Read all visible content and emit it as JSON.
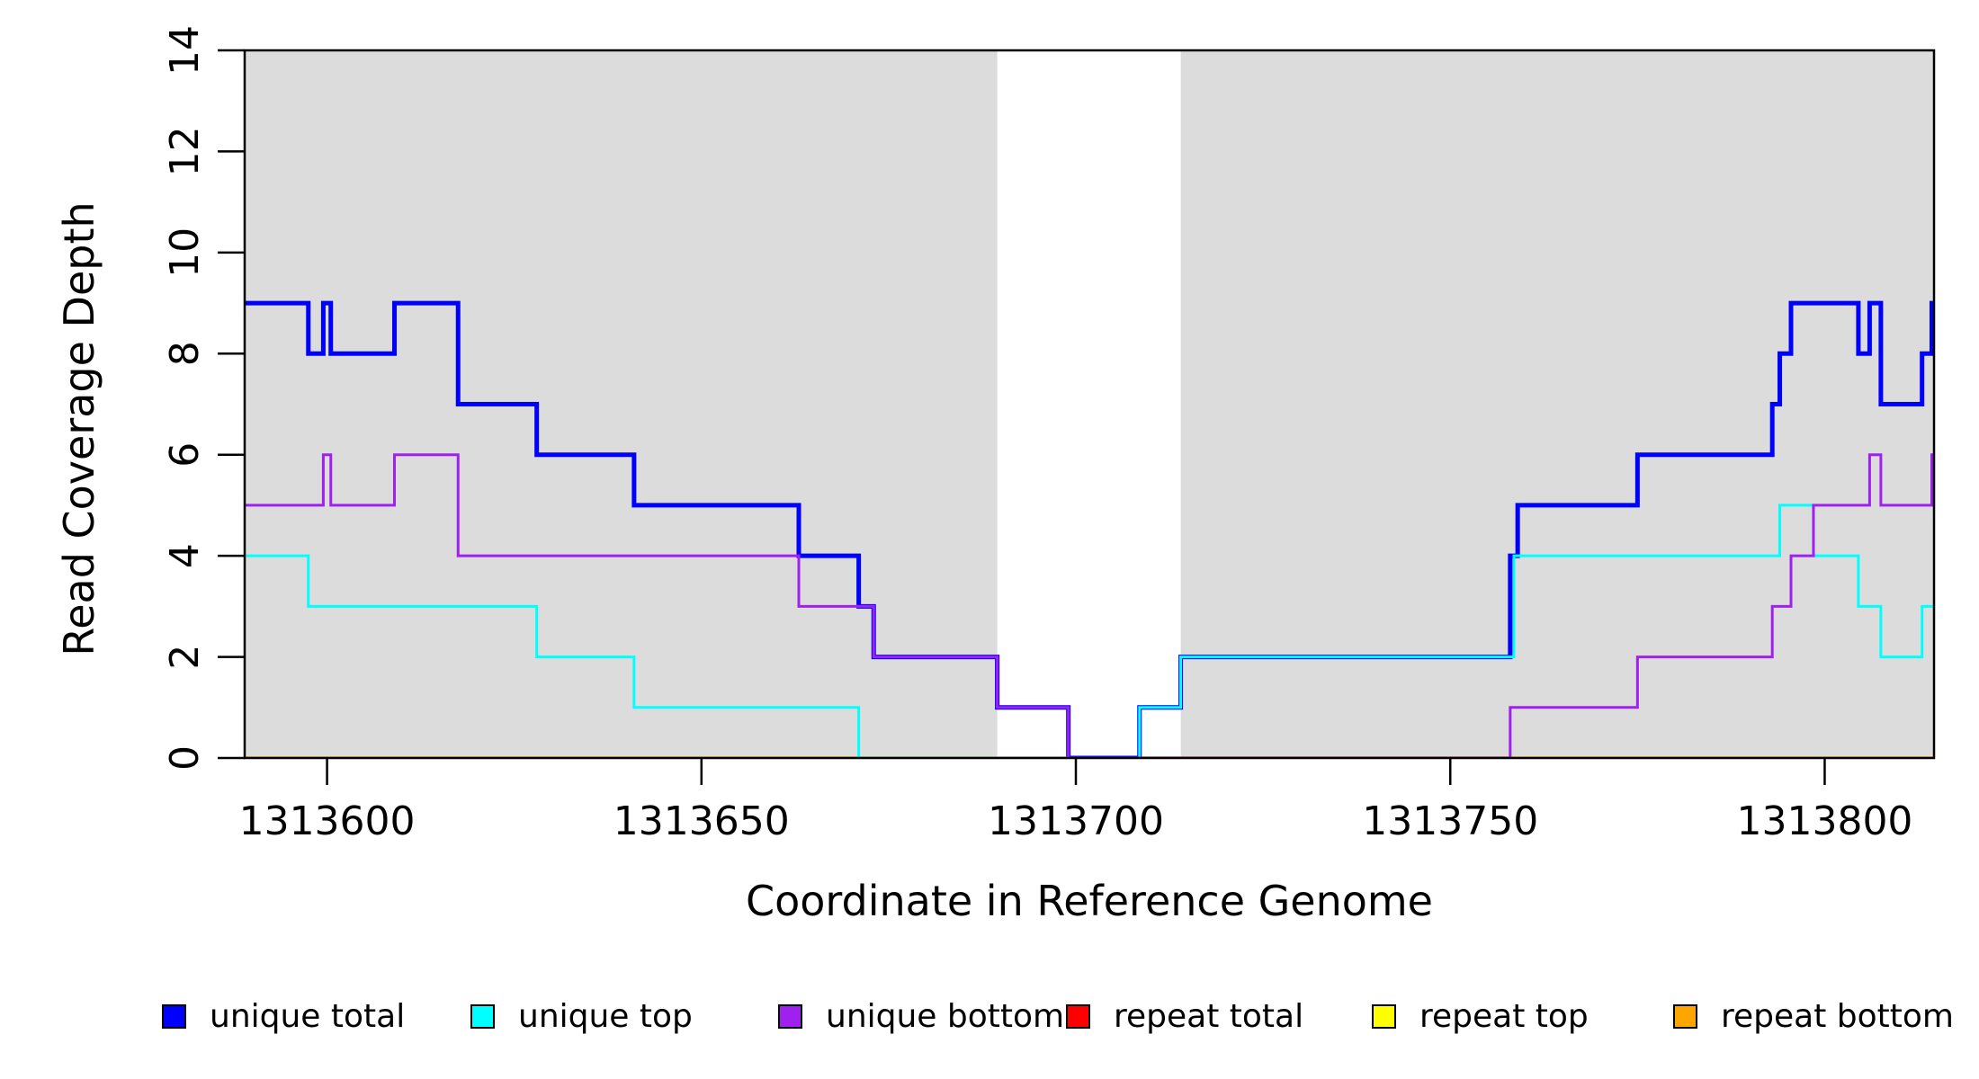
{
  "chart_data": {
    "type": "line",
    "subtype": "step",
    "title": "",
    "xlabel": "Coordinate in Reference Genome",
    "ylabel": "Read Coverage Depth",
    "xlim": [
      1313589,
      1313814.6
    ],
    "ylim": [
      0,
      14
    ],
    "x_ticks": [
      1313600,
      1313650,
      1313700,
      1313750,
      1313800
    ],
    "y_ticks": [
      0,
      2,
      4,
      6,
      8,
      10,
      12,
      14
    ],
    "grid": false,
    "legend_position": "bottom",
    "shaded_regions": {
      "color": "#DCDCDC",
      "x_ranges": [
        [
          1313589,
          1313689.5
        ],
        [
          1313714,
          1313814.6
        ]
      ]
    },
    "legend_order": [
      "unique total",
      "unique top",
      "unique bottom",
      "repeat total",
      "repeat top",
      "repeat bottom"
    ],
    "series": [
      {
        "name": "repeat total",
        "color": "#FF0000",
        "line_width": 3,
        "step_points": [
          [
            1313589,
            0
          ]
        ]
      },
      {
        "name": "repeat top",
        "color": "#FFFF00",
        "line_width": 3,
        "step_points": [
          [
            1313589,
            0
          ]
        ]
      },
      {
        "name": "repeat bottom",
        "color": "#FFA500",
        "line_width": 3.5,
        "step_points": [
          [
            1313589,
            0
          ]
        ]
      },
      {
        "name": "unique total",
        "color": "#0000FF",
        "line_width": 5,
        "step_points": [
          [
            1313589,
            9
          ],
          [
            1313597.5,
            8
          ],
          [
            1313599.5,
            9
          ],
          [
            1313600.5,
            8
          ],
          [
            1313609,
            9
          ],
          [
            1313617.5,
            7
          ],
          [
            1313628,
            6
          ],
          [
            1313641,
            5
          ],
          [
            1313663,
            4
          ],
          [
            1313671,
            3
          ],
          [
            1313673,
            2
          ],
          [
            1313689.5,
            1
          ],
          [
            1313699,
            0
          ],
          [
            1313708.5,
            1
          ],
          [
            1313714,
            2
          ],
          [
            1313758,
            4
          ],
          [
            1313759,
            5
          ],
          [
            1313775,
            6
          ],
          [
            1313793,
            7
          ],
          [
            1313794,
            8
          ],
          [
            1313795.5,
            9
          ],
          [
            1313804.5,
            8
          ],
          [
            1313806,
            9
          ],
          [
            1313807.5,
            7
          ],
          [
            1313813,
            8
          ],
          [
            1313814.3,
            9
          ]
        ]
      },
      {
        "name": "unique top",
        "color": "#00FFFF",
        "line_width": 3,
        "step_points": [
          [
            1313589,
            4
          ],
          [
            1313597.5,
            3
          ],
          [
            1313628,
            2
          ],
          [
            1313641,
            1
          ],
          [
            1313671,
            0
          ],
          [
            1313708.5,
            1
          ],
          [
            1313714,
            2
          ],
          [
            1313758.5,
            4
          ],
          [
            1313794,
            5
          ],
          [
            1313798.5,
            4
          ],
          [
            1313804.5,
            3
          ],
          [
            1313807.5,
            2
          ],
          [
            1313813,
            3
          ]
        ]
      },
      {
        "name": "unique bottom",
        "color": "#A020F0",
        "line_width": 3,
        "step_points": [
          [
            1313589,
            5
          ],
          [
            1313599.5,
            6
          ],
          [
            1313600.5,
            5
          ],
          [
            1313609,
            6
          ],
          [
            1313617.5,
            4
          ],
          [
            1313663,
            3
          ],
          [
            1313673,
            2
          ],
          [
            1313689.5,
            1
          ],
          [
            1313699,
            0
          ],
          [
            1313758,
            1
          ],
          [
            1313775,
            2
          ],
          [
            1313793,
            3
          ],
          [
            1313795.5,
            4
          ],
          [
            1313798.5,
            5
          ],
          [
            1313806,
            6
          ],
          [
            1313807.5,
            5
          ],
          [
            1313814.3,
            6
          ]
        ]
      }
    ],
    "axis_color": "#000000",
    "background_color": "#FFFFFF"
  },
  "labels": {
    "xlabel": "Coordinate in Reference Genome",
    "ylabel": "Read Coverage Depth"
  },
  "legend": {
    "items": [
      {
        "label": "unique total",
        "color": "#0000FF"
      },
      {
        "label": "unique top",
        "color": "#00FFFF"
      },
      {
        "label": "unique bottom",
        "color": "#A020F0"
      },
      {
        "label": "repeat total",
        "color": "#FF0000"
      },
      {
        "label": "repeat top",
        "color": "#FFFF00"
      },
      {
        "label": "repeat bottom",
        "color": "#FFA500"
      }
    ]
  }
}
